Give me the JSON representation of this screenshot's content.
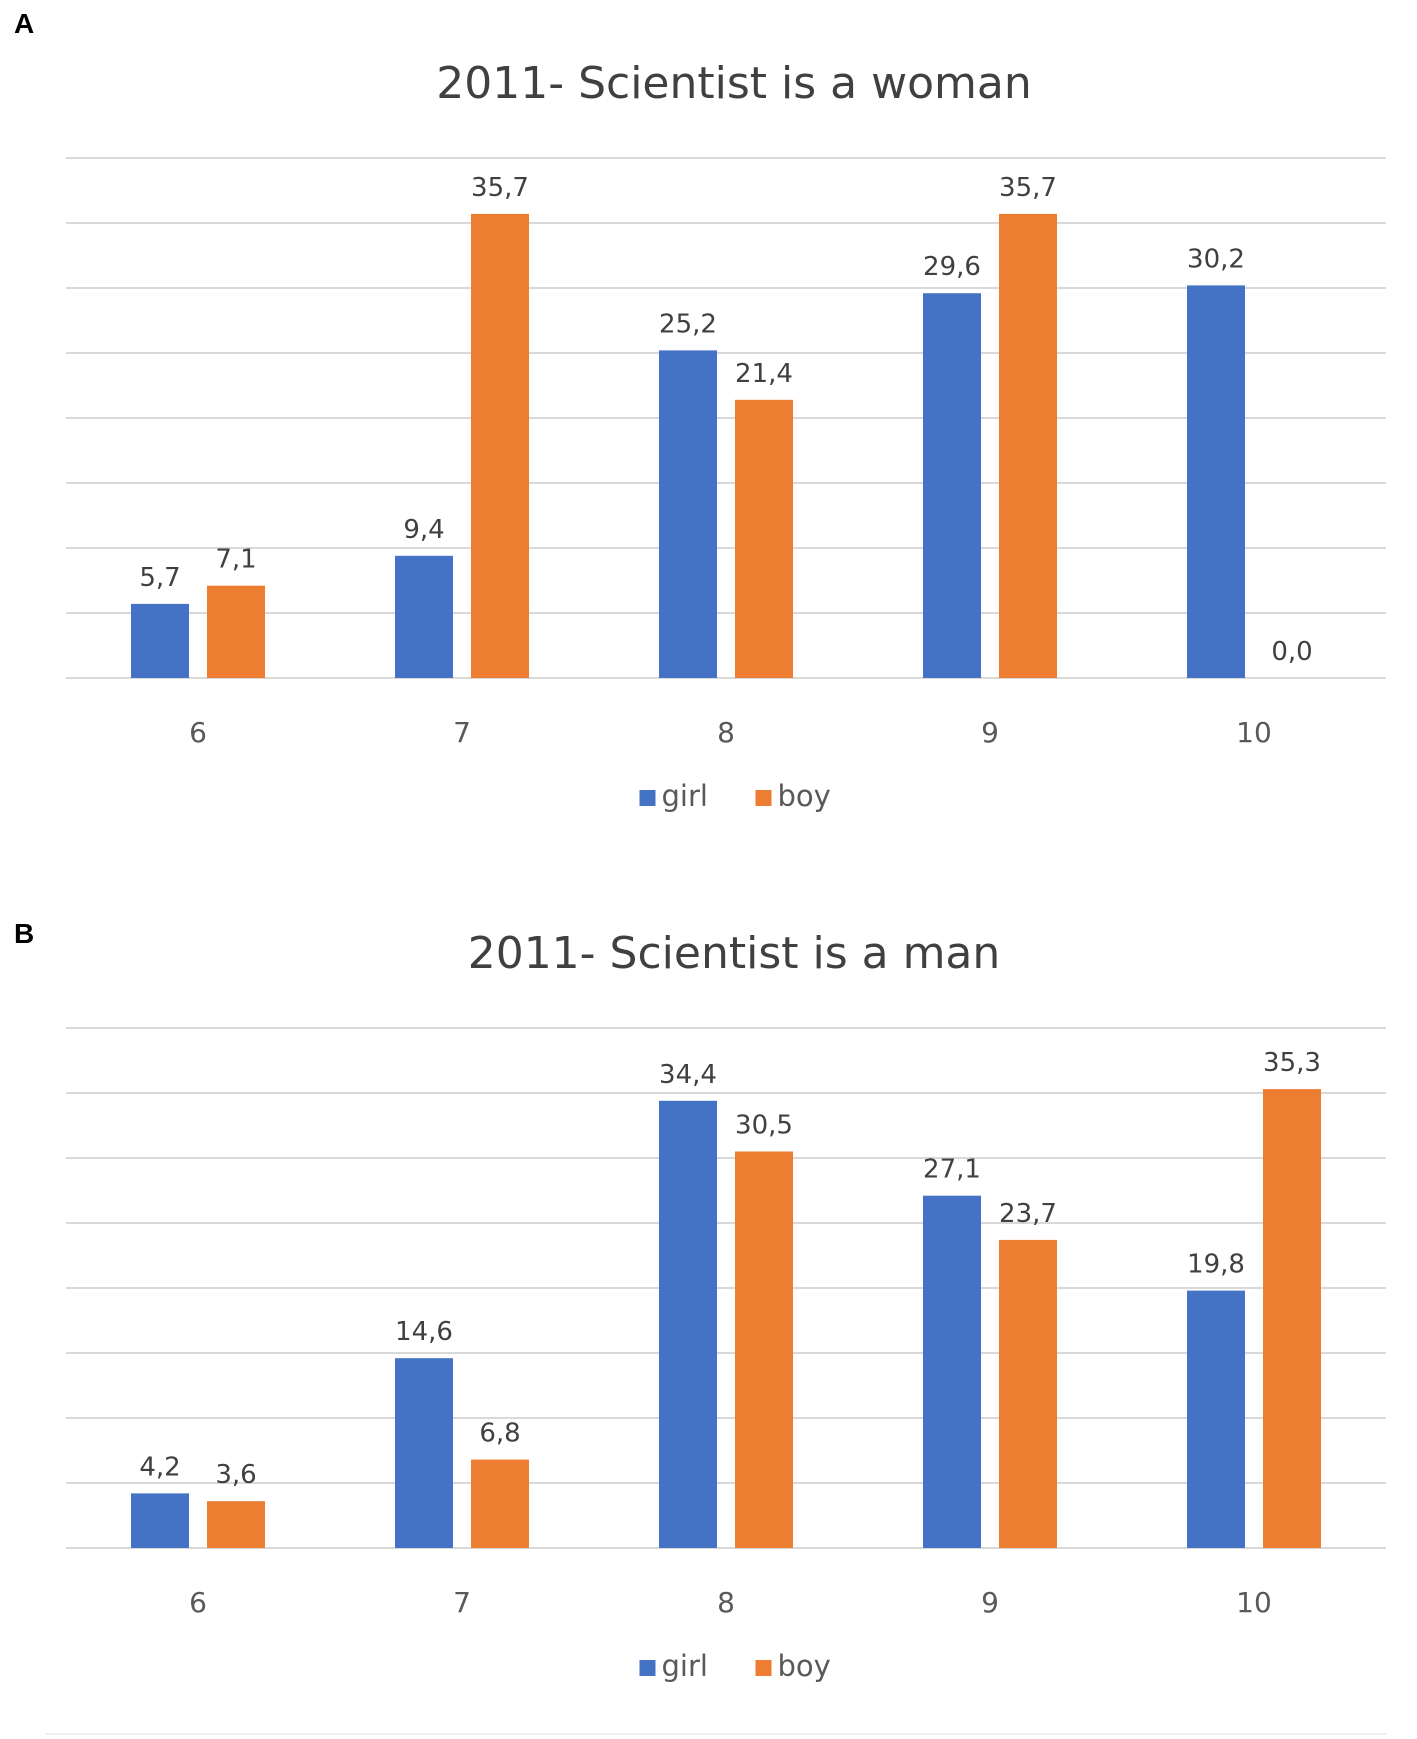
{
  "panels": {
    "a": {
      "letter": "A"
    },
    "b": {
      "letter": "B"
    }
  },
  "colors": {
    "girl": "#4472C4",
    "boy": "#ED7D31",
    "gridline": "#d9d9d9",
    "text": "#404040"
  },
  "chart_data": [
    {
      "type": "bar",
      "title": "2011- Scientist is a woman",
      "categories": [
        "6",
        "7",
        "8",
        "9",
        "10"
      ],
      "series": [
        {
          "name": "girl",
          "values": [
            5.7,
            9.4,
            25.2,
            29.6,
            30.2
          ],
          "labels": [
            "5,7",
            "9,4",
            "25,2",
            "29,6",
            "30,2"
          ]
        },
        {
          "name": "boy",
          "values": [
            7.1,
            35.7,
            21.4,
            35.7,
            0.0
          ],
          "labels": [
            "7,1",
            "35,7",
            "21,4",
            "35,7",
            "0,0"
          ]
        }
      ],
      "xlabel": "",
      "ylabel": "",
      "ylim": [
        0,
        40
      ],
      "grid": true,
      "legend": "bottom-center"
    },
    {
      "type": "bar",
      "title": "2011- Scientist is a man",
      "categories": [
        "6",
        "7",
        "8",
        "9",
        "10"
      ],
      "series": [
        {
          "name": "girl",
          "values": [
            4.2,
            14.6,
            34.4,
            27.1,
            19.8
          ],
          "labels": [
            "4,2",
            "14,6",
            "34,4",
            "27,1",
            "19,8"
          ]
        },
        {
          "name": "boy",
          "values": [
            3.6,
            6.8,
            30.5,
            23.7,
            35.3
          ],
          "labels": [
            "3,6",
            "6,8",
            "30,5",
            "23,7",
            "35,3"
          ]
        }
      ],
      "xlabel": "",
      "ylabel": "",
      "ylim": [
        0,
        40
      ],
      "grid": true,
      "legend": "bottom-center"
    }
  ]
}
